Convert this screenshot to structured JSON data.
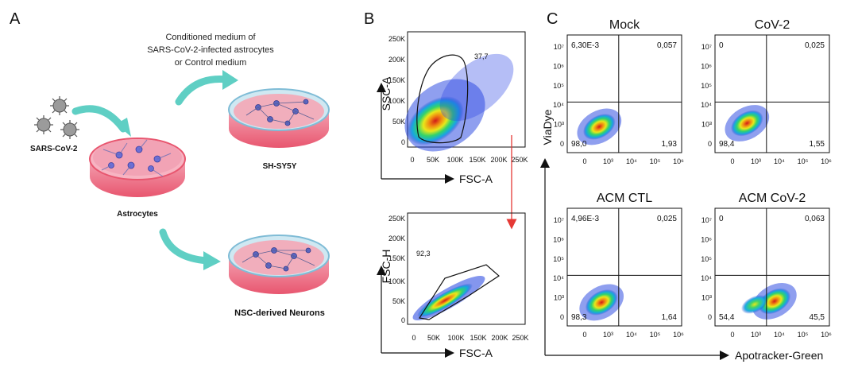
{
  "panel_a": {
    "letter": "A",
    "caption_line1": "Conditioned medium of",
    "caption_line2": "SARS-CoV-2-infected astrocytes",
    "caption_line3": "or  Control medium",
    "virus_label": "SARS-CoV-2",
    "astro_label": "Astrocytes",
    "shsy_label": "SH-SY5Y",
    "nsc_label": "NSC-derived Neurons",
    "colors": {
      "dish_rim": "#e8566f",
      "dish_fill": "#f4a7b6",
      "medium_top": "#bfe3f2",
      "arrow": "#5fcfc4",
      "virus": "#8a8a8a"
    }
  },
  "panel_b": {
    "letter": "B",
    "top_plot": {
      "ylabel": "SSC-A",
      "xlabel": "FSC-A",
      "yticks": [
        "250K",
        "200K",
        "150K",
        "100K",
        "50K",
        "0"
      ],
      "xticks": [
        "0",
        "50K",
        "100K",
        "150K",
        "200K",
        "250K"
      ],
      "gate_pct": "37,7"
    },
    "bottom_plot": {
      "ylabel": "FSC-H",
      "xlabel": "FSC-A",
      "yticks": [
        "250K",
        "200K",
        "150K",
        "100K",
        "50K",
        "0"
      ],
      "xticks": [
        "0",
        "50K",
        "100K",
        "150K",
        "200K",
        "250K"
      ],
      "gate_pct": "92,3"
    },
    "connector_color": "#e53935"
  },
  "panel_c": {
    "letter": "C",
    "ylabel": "ViaDye",
    "xlabel": "Apotracker-Green",
    "xticks": [
      "0",
      "10³",
      "10⁴",
      "10⁵",
      "10⁶"
    ],
    "yticks": [
      "10⁷",
      "10⁶",
      "10⁵",
      "10⁴",
      "10³",
      "0"
    ],
    "plots": [
      {
        "title": "Mock",
        "ul": "6,30E-3",
        "ur": "0,057",
        "ll": "98,0",
        "lr": "1,93"
      },
      {
        "title": "CoV-2",
        "ul": "0",
        "ur": "0,025",
        "ll": "98,4",
        "lr": "1,55"
      },
      {
        "title": "ACM CTL",
        "ul": "4,96E-3",
        "ur": "0,025",
        "ll": "98,3",
        "lr": "1,64"
      },
      {
        "title": "ACM CoV-2",
        "ul": "0",
        "ur": "0,063",
        "ll": "54,4",
        "lr": "45,5"
      }
    ]
  }
}
